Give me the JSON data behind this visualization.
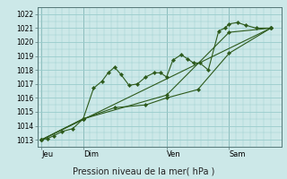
{
  "background_color": "#cce8e8",
  "grid_color": "#99cccc",
  "line_color": "#2d5a1b",
  "marker_color": "#2d5a1b",
  "title": "Pression niveau de la mer( hPa )",
  "ylabel_values": [
    1013,
    1014,
    1015,
    1016,
    1017,
    1018,
    1019,
    1020,
    1021,
    1022
  ],
  "ylim": [
    1012.5,
    1022.5
  ],
  "xlim": [
    -0.2,
    11.5
  ],
  "x_tick_labels": [
    "Jeu",
    "Dim",
    "Ven",
    "Sam"
  ],
  "x_tick_positions": [
    0,
    2,
    6,
    9
  ],
  "series": [
    [
      0.0,
      1013.0,
      0.3,
      1013.1,
      0.6,
      1013.3,
      1.0,
      1013.6,
      1.5,
      1013.8,
      2.0,
      1014.5,
      2.5,
      1016.7,
      2.9,
      1017.2,
      3.2,
      1017.8,
      3.5,
      1018.2,
      3.8,
      1017.7,
      4.2,
      1016.9,
      4.6,
      1017.0,
      5.0,
      1017.5,
      5.4,
      1017.8,
      5.7,
      1017.8,
      6.0,
      1017.5,
      6.3,
      1018.7,
      6.7,
      1019.1,
      7.0,
      1018.8,
      7.3,
      1018.5,
      7.6,
      1018.5,
      8.0,
      1018.0,
      8.5,
      1020.8,
      8.8,
      1021.0,
      9.0,
      1021.3,
      9.4,
      1021.4,
      9.8,
      1021.2,
      10.3,
      1021.0,
      11.0,
      1021.0
    ],
    [
      0.0,
      1013.0,
      2.0,
      1014.5,
      6.0,
      1016.2,
      9.0,
      1020.7,
      11.0,
      1021.0
    ],
    [
      0.0,
      1013.0,
      2.0,
      1014.5,
      3.5,
      1015.3,
      5.0,
      1015.5,
      6.0,
      1016.0,
      7.5,
      1016.6,
      9.0,
      1019.2,
      11.0,
      1021.0
    ],
    [
      0.0,
      1013.0,
      11.0,
      1021.0
    ]
  ]
}
